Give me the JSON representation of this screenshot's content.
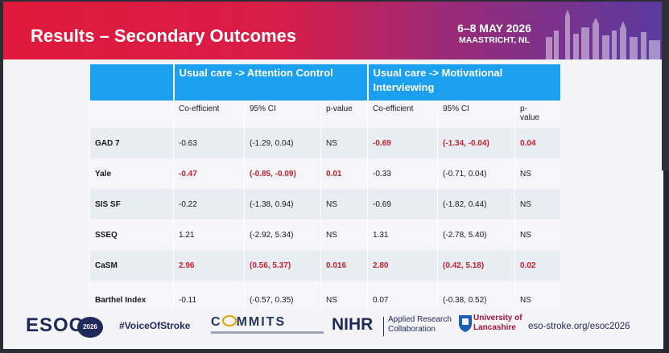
{
  "slide": {
    "title": "Results – Secondary Outcomes",
    "event_dates": "6–8 MAY 2026",
    "event_city": "MAASTRICHT, NL"
  },
  "table": {
    "group_1_title": "Usual care  -> Attention Control",
    "group_2_title": "Usual care  -> Motivational Interviewing",
    "subheaders": [
      "Co-efficient",
      "95% CI",
      "p-value",
      "Co-efficient",
      "95% CI",
      "p-\nvalue"
    ],
    "rows": [
      {
        "label": "GAD 7",
        "values": [
          "-0.63",
          "(-1.29, 0.04)",
          "NS",
          "-0.69",
          "(-1.34, -0.04)",
          "0.04"
        ]
      },
      {
        "label": "Yale",
        "values": [
          "-0.47",
          "(-0.85, -0.09)",
          "0.01",
          "-0.33",
          "(-0.71, 0.04)",
          "NS"
        ]
      },
      {
        "label": "SIS SF",
        "values": [
          "-0.22",
          "(-1.38, 0.94)",
          "NS",
          "-0.69",
          "(-1.82, 0.44)",
          "NS"
        ]
      },
      {
        "label": "SSEQ",
        "values": [
          "1.21",
          "(-2.92, 5.34)",
          "NS",
          "1.31",
          "(-2.78, 5.40)",
          "NS"
        ]
      },
      {
        "label": "CaSM",
        "values": [
          "2.96",
          "(0.56, 5.37)",
          "0.016",
          "2.80",
          "(0.42, 5.18)",
          "0.02"
        ]
      },
      {
        "label": "Barthel Index",
        "values": [
          "-0.11",
          "(-0.57, 0.35)",
          "NS",
          "0.07",
          "(-0.38, 0.52)",
          "NS"
        ]
      }
    ]
  },
  "footer": {
    "esoc": "ESOC",
    "esoc_year": "2026",
    "hashtag": "#VoiceOfStroke",
    "commits_left": "C",
    "commits_right": "MMITS",
    "nihr": "NIHR",
    "arc_line1": "Applied Research",
    "arc_line2": "Collaboration",
    "uni_line1": "University of",
    "uni_line2": "Lancashire",
    "website": "eso-stroke.org/esoc2026"
  },
  "colors": {
    "banner_red": "#e01a3c",
    "banner_purple": "#5a3aa0",
    "table_header_blue": "#1aa0ee",
    "significant_red": "#c8202e",
    "navy": "#1f2a5c"
  },
  "icons": {
    "city_skyline": "city-skyline-icon",
    "university_crest": "university-crest-icon"
  }
}
